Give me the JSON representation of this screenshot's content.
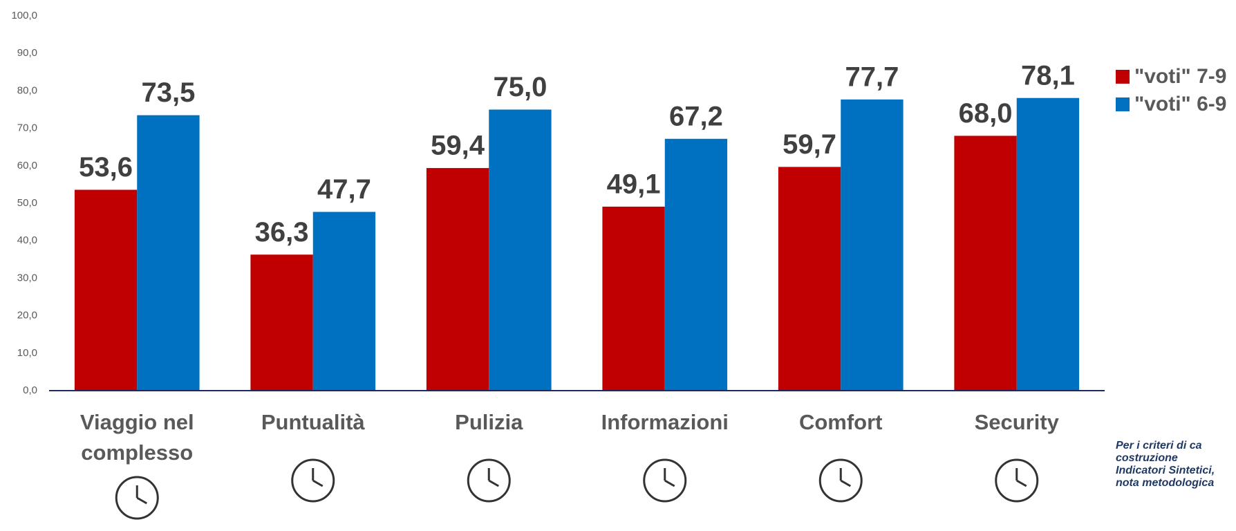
{
  "chart_data": {
    "type": "bar",
    "categories": [
      "Viaggio nel complesso",
      "Puntualità",
      "Pulizia",
      "Informazioni",
      "Comfort",
      "Security"
    ],
    "series": [
      {
        "name": "\"voti\" 7-9",
        "color": "#c00000",
        "values": [
          53.6,
          36.3,
          59.4,
          49.1,
          59.7,
          68.0
        ],
        "value_labels": [
          "53,6",
          "36,3",
          "59,4",
          "49,1",
          "59,7",
          "68,0"
        ]
      },
      {
        "name": "\"voti\" 6-9",
        "color": "#0070c0",
        "values": [
          73.5,
          47.7,
          75.0,
          67.2,
          77.7,
          78.1
        ],
        "value_labels": [
          "73,5",
          "47,7",
          "75,0",
          "67,2",
          "77,7",
          "78,1"
        ]
      }
    ],
    "ylim": [
      0,
      100
    ],
    "yticks": [
      {
        "value": 0,
        "label": "0,0"
      },
      {
        "value": 10,
        "label": "10,0"
      },
      {
        "value": 20,
        "label": "20,0"
      },
      {
        "value": 30,
        "label": "30,0"
      },
      {
        "value": 40,
        "label": "40,0"
      },
      {
        "value": 50,
        "label": "50,0"
      },
      {
        "value": 60,
        "label": "60,0"
      },
      {
        "value": 70,
        "label": "70,0"
      },
      {
        "value": 80,
        "label": "80,0"
      },
      {
        "value": 90,
        "label": "90,0"
      },
      {
        "value": 100,
        "label": "100,0"
      }
    ],
    "grid": false,
    "legend": "right",
    "note": [
      "Per i criteri di ca",
      "costruzione",
      "Indicatori Sintetici,",
      "nota metodologica"
    ]
  }
}
